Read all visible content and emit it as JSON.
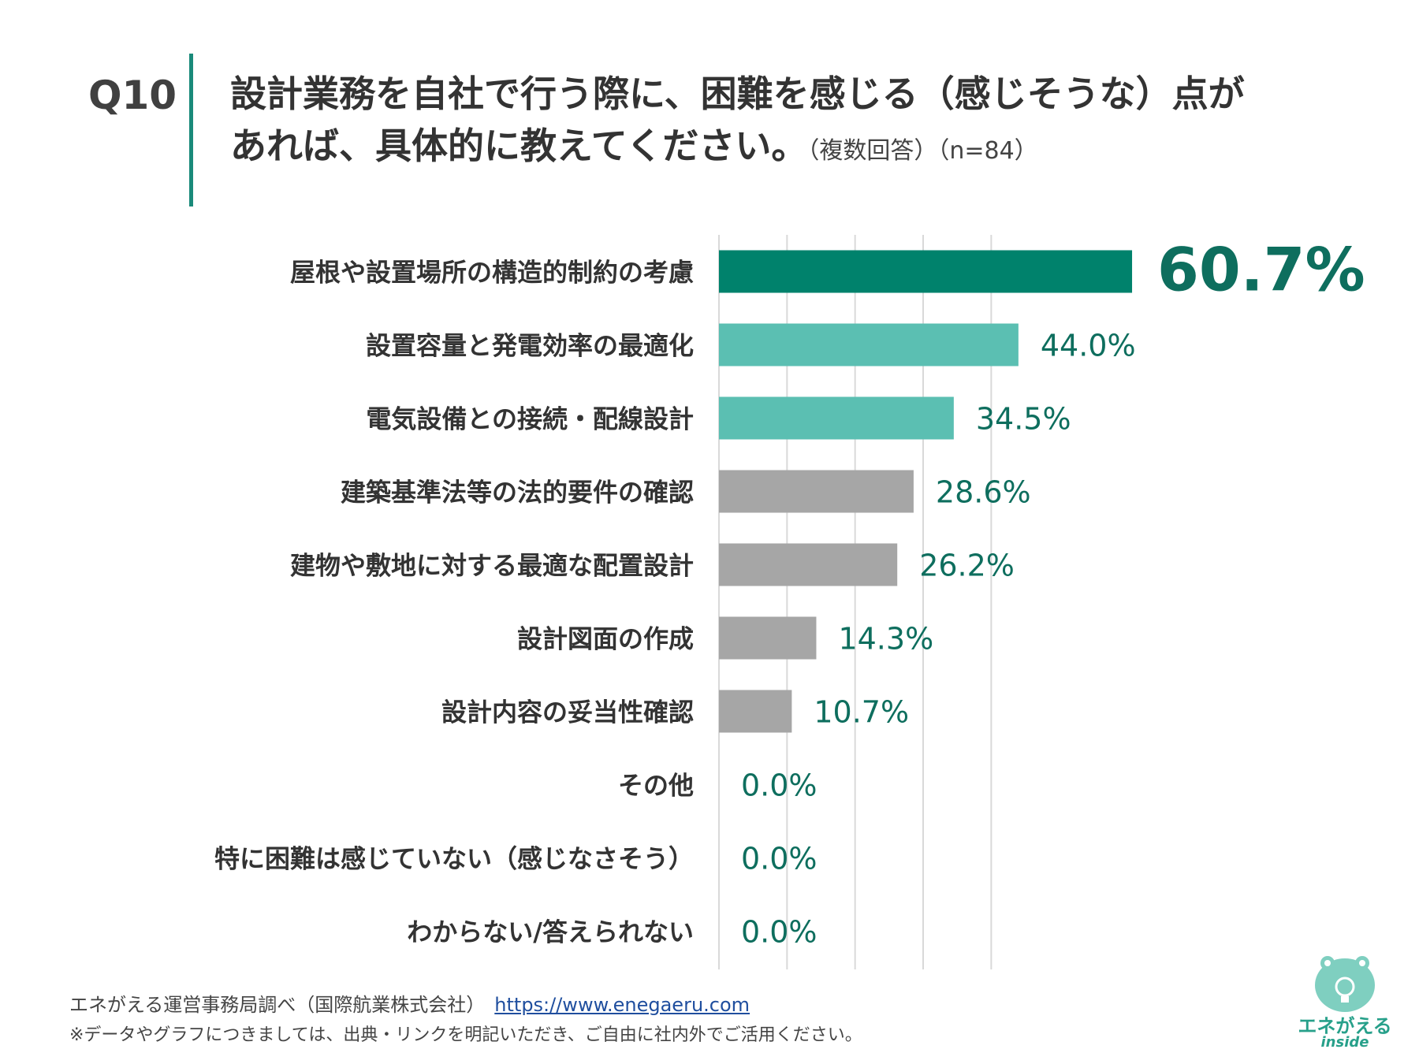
{
  "question": {
    "number": "Q10",
    "line1": "設計業務を自社で行う際に、困難を感じる（感じそうな）点が",
    "line2": "あれば、具体的に教えてください。",
    "note": "（複数回答）（n=84）"
  },
  "chart_data": {
    "type": "bar",
    "orientation": "horizontal",
    "categories": [
      "屋根や設置場所の構造的制約の考慮",
      "設置容量と発電効率の最適化",
      "電気設備との接続・配線設計",
      "建築基準法等の法的要件の確認",
      "建物や敷地に対する最適な配置設計",
      "設計図面の作成",
      "設計内容の妥当性確認",
      "その他",
      "特に困難は感じていない（感じなさそう）",
      "わからない/答えられない"
    ],
    "values": [
      60.7,
      44.0,
      34.5,
      28.6,
      26.2,
      14.3,
      10.7,
      0.0,
      0.0,
      0.0
    ],
    "value_labels": [
      "60.7%",
      "44.0%",
      "34.5%",
      "28.6%",
      "26.2%",
      "14.3%",
      "10.7%",
      "0.0%",
      "0.0%",
      "0.0%"
    ],
    "bar_colors": [
      "#00826c",
      "#5bbfb2",
      "#5bbfb2",
      "#a6a6a6",
      "#a6a6a6",
      "#a6a6a6",
      "#a6a6a6",
      "#a6a6a6",
      "#a6a6a6",
      "#a6a6a6"
    ],
    "label_color": "#0e6e5e",
    "xlim": [
      0,
      80
    ],
    "grid": true,
    "grid_color": "#d9d9d9"
  },
  "footer": {
    "source": "エネがえる運営事務局調べ（国際航業株式会社）",
    "link": "https://www.enegaeru.com",
    "note": "※データやグラフにつきましては、出典・リンクを明記いただき、ご自由に社内外でご活用ください。"
  },
  "logo": {
    "name": "エネがえる",
    "sub": "inside"
  }
}
